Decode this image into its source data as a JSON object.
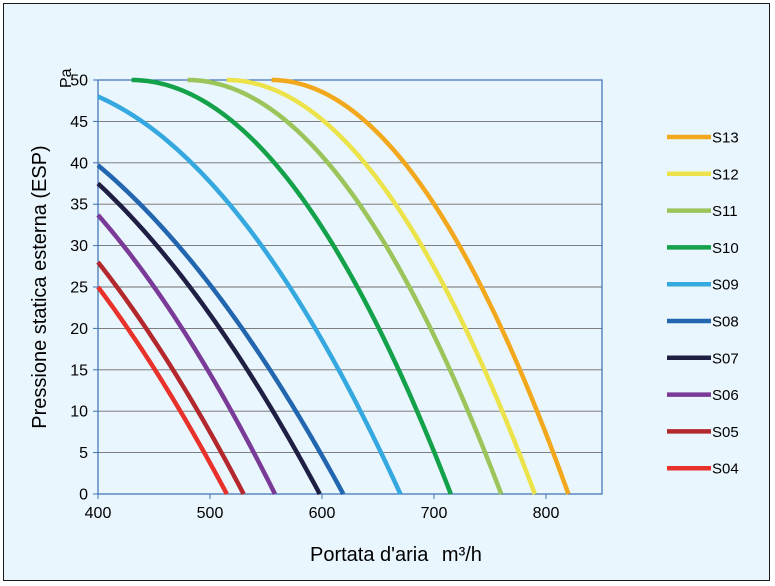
{
  "chart_data": {
    "type": "line",
    "xlabel": "Portata d'aria",
    "xlabel_unit": "m³/h",
    "ylabel": "Pressione statica esterna (ESP)",
    "ylabel_unit": "Pa",
    "xlim": [
      400,
      850
    ],
    "ylim": [
      0,
      50
    ],
    "xticks": [
      400,
      500,
      600,
      700,
      800
    ],
    "yticks": [
      0,
      5,
      10,
      15,
      20,
      25,
      30,
      35,
      40,
      45,
      50
    ],
    "grid": "horizontal",
    "legend_position": "right",
    "series": [
      {
        "name": "S13",
        "color": "#f2a81d",
        "x0": 555,
        "x50": 820
      },
      {
        "name": "S12",
        "color": "#ece34a",
        "x0": 515,
        "x50": 790
      },
      {
        "name": "S11",
        "color": "#9bc45a",
        "x0": 480,
        "x50": 760
      },
      {
        "name": "S10",
        "color": "#13a14a",
        "x0": 430,
        "x50": 715
      },
      {
        "name": "S09",
        "color": "#35a9df",
        "y_at_400": 48,
        "x50": 670
      },
      {
        "name": "S08",
        "color": "#2166ae",
        "y_at_400": 39.7,
        "x50": 619
      },
      {
        "name": "S07",
        "color": "#1f1f44",
        "y_at_400": 37.5,
        "x50": 598
      },
      {
        "name": "S06",
        "color": "#7a3a97",
        "y_at_400": 33.7,
        "x50": 558
      },
      {
        "name": "S05",
        "color": "#b3282d",
        "y_at_400": 28,
        "x50": 530
      },
      {
        "name": "S04",
        "color": "#e8312a",
        "y_at_400": 25,
        "x50": 515
      }
    ]
  }
}
